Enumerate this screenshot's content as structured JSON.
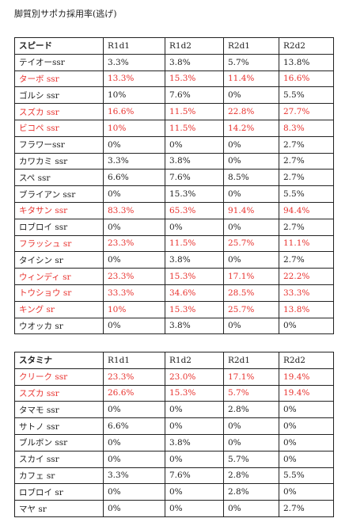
{
  "title": "脚質別サポカ採用率(逃げ)",
  "tables": [
    {
      "header": [
        "スピード",
        "R1d1",
        "R1d2",
        "R2d1",
        "R2d2"
      ],
      "rows": [
        {
          "cells": [
            "テイオーssr",
            "3.3%",
            "3.8%",
            "5.7%",
            "13.8%"
          ]
        },
        {
          "cells": [
            "ターボ ssr",
            "13.3%",
            "15.3%",
            "11.4%",
            "16.6%"
          ],
          "color": "#e8322e"
        },
        {
          "cells": [
            "ゴルシ ssr",
            "10%",
            "7.6%",
            "0%",
            "5.5%"
          ]
        },
        {
          "cells": [
            "スズカ ssr",
            "16.6%",
            "11.5%",
            "22.8%",
            "27.7%"
          ],
          "color": "#e8322e"
        },
        {
          "cells": [
            "ビコペ ssr",
            "10%",
            "11.5%",
            "14.2%",
            "8.3%"
          ],
          "color": "#e8322e"
        },
        {
          "cells": [
            "フラワーssr",
            "0%",
            "0%",
            "0%",
            "2.7%"
          ]
        },
        {
          "cells": [
            "カワカミ ssr",
            "3.3%",
            "3.8%",
            "0%",
            "2.7%"
          ]
        },
        {
          "cells": [
            "スペ ssr",
            "6.6%",
            "7.6%",
            "8.5%",
            "2.7%"
          ]
        },
        {
          "cells": [
            "ブライアン ssr",
            "0%",
            "15.3%",
            "0%",
            "5.5%"
          ]
        },
        {
          "cells": [
            "キタサン ssr",
            "83.3%",
            "65.3%",
            "91.4%",
            "94.4%"
          ],
          "color": "#e8322e"
        },
        {
          "cells": [
            "ロブロイ ssr",
            "0%",
            "0%",
            "0%",
            "2.7%"
          ]
        },
        {
          "cells": [
            "フラッシュ sr",
            "23.3%",
            "11.5%",
            "25.7%",
            "11.1%"
          ],
          "color": "#e8322e"
        },
        {
          "cells": [
            "タイシン sr",
            "0%",
            "3.8%",
            "0%",
            "2.7%"
          ]
        },
        {
          "cells": [
            "ウィンディ sr",
            "23.3%",
            "15.3%",
            "17.1%",
            "22.2%"
          ],
          "color": "#e8322e"
        },
        {
          "cells": [
            "トウショウ sr",
            "33.3%",
            "34.6%",
            "28.5%",
            "33.3%"
          ],
          "color": "#e8322e"
        },
        {
          "cells": [
            "キング sr",
            "10%",
            "15.3%",
            "25.7%",
            "13.8%"
          ],
          "color": "#e8322e"
        },
        {
          "cells": [
            "ウオッカ sr",
            "0%",
            "3.8%",
            "0%",
            "0%"
          ]
        }
      ]
    },
    {
      "header": [
        "スタミナ",
        "R1d1",
        "R1d2",
        "R2d1",
        "R2d2"
      ],
      "rows": [
        {
          "cells": [
            "クリーク ssr",
            "23.3%",
            "23.0%",
            "17.1%",
            "19.4%"
          ],
          "color": "#e8322e"
        },
        {
          "cells": [
            "スズカ ssr",
            "26.6%",
            "15.3%",
            "5.7%",
            "19.4%"
          ],
          "color": "#e8322e"
        },
        {
          "cells": [
            "タマモ ssr",
            "0%",
            "0%",
            "2.8%",
            "0%"
          ]
        },
        {
          "cells": [
            "サトノ ssr",
            "6.6%",
            "0%",
            "0%",
            "0%"
          ]
        },
        {
          "cells": [
            "ブルボン ssr",
            "0%",
            "3.8%",
            "0%",
            "0%"
          ]
        },
        {
          "cells": [
            "スカイ ssr",
            "0%",
            "0%",
            "5.7%",
            "0%"
          ]
        },
        {
          "cells": [
            "カフェ sr",
            "3.3%",
            "7.6%",
            "2.8%",
            "5.5%"
          ]
        },
        {
          "cells": [
            "ロブロイ sr",
            "0%",
            "0%",
            "2.8%",
            "0%"
          ]
        },
        {
          "cells": [
            "マヤ sr",
            "0%",
            "0%",
            "0%",
            "2.7%"
          ]
        }
      ]
    }
  ]
}
